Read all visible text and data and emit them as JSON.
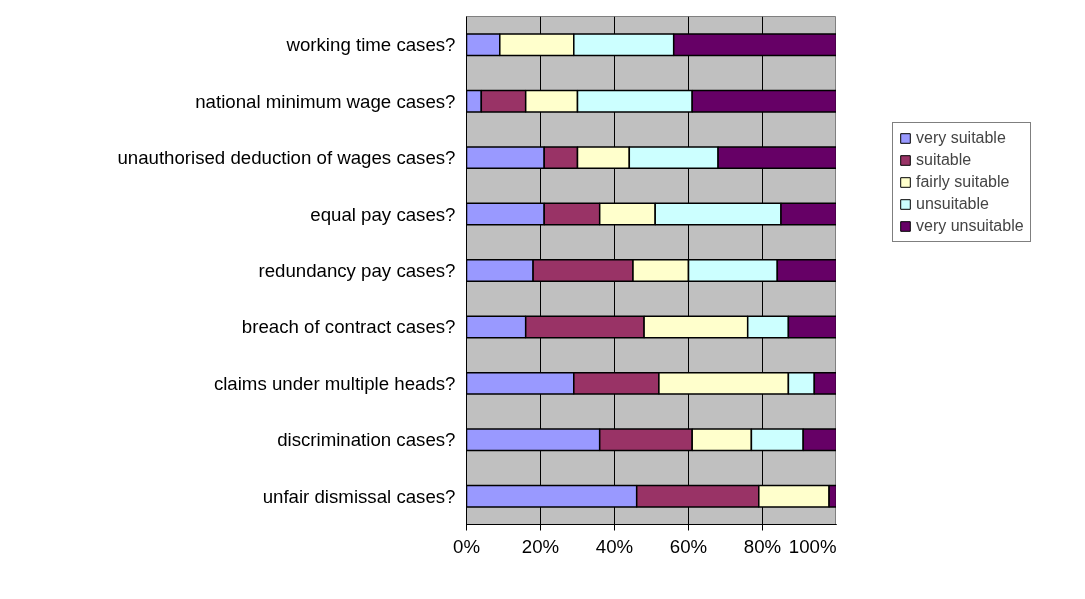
{
  "chart_data": {
    "type": "bar",
    "orientation": "horizontal",
    "stacked": true,
    "categories": [
      "working time cases?",
      "national minimum wage cases?",
      "unauthorised deduction of wages cases?",
      "equal pay cases?",
      "redundancy pay cases?",
      "breach of contract cases?",
      "claims under multiple heads?",
      "discrimination cases?",
      "unfair dismissal cases?"
    ],
    "series": [
      {
        "name": "very suitable",
        "color": "#9999ff",
        "values": [
          9,
          4,
          21,
          21,
          18,
          16,
          29,
          36,
          46
        ]
      },
      {
        "name": "suitable",
        "color": "#993366",
        "values": [
          0,
          12,
          9,
          15,
          27,
          32,
          23,
          25,
          33
        ]
      },
      {
        "name": "fairly suitable",
        "color": "#ffffcc",
        "values": [
          20,
          14,
          14,
          15,
          15,
          28,
          35,
          16,
          19
        ]
      },
      {
        "name": "unsuitable",
        "color": "#ccffff",
        "values": [
          27,
          31,
          24,
          34,
          24,
          11,
          7,
          14,
          0
        ]
      },
      {
        "name": "very unsuitable",
        "color": "#660066",
        "values": [
          44,
          39,
          32,
          15,
          16,
          13,
          6,
          9,
          2
        ]
      }
    ],
    "xlim": [
      0,
      100
    ],
    "xticks": [
      {
        "value": 0,
        "label": "0%"
      },
      {
        "value": 20,
        "label": "20%"
      },
      {
        "value": 40,
        "label": "40%"
      },
      {
        "value": 60,
        "label": "60%"
      },
      {
        "value": 80,
        "label": "80%"
      },
      {
        "value": 100,
        "label": "100%"
      }
    ],
    "grid": "x",
    "legend": "right"
  }
}
